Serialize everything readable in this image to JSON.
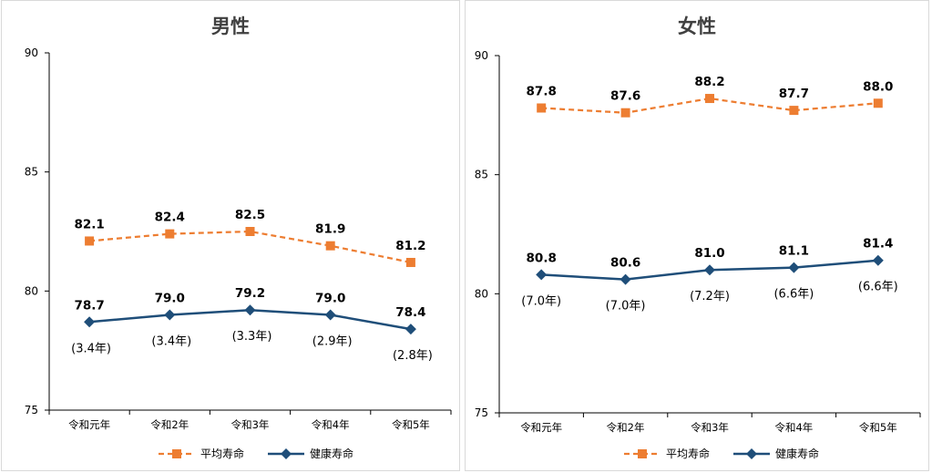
{
  "colors": {
    "life": "#ED7D31",
    "health": "#1F4E79",
    "axis": "#000000"
  },
  "chart_data": [
    {
      "type": "line",
      "title": "男性",
      "categories": [
        "令和元年",
        "令和2年",
        "令和3年",
        "令和4年",
        "令和5年"
      ],
      "ylim": [
        75,
        90
      ],
      "yticks": [
        "75",
        "80",
        "85",
        "90"
      ],
      "series": [
        {
          "name": "平均寿命",
          "values": [
            82.1,
            82.4,
            82.5,
            81.9,
            81.2
          ],
          "labels": [
            "82.1",
            "82.4",
            "82.5",
            "81.9",
            "81.2"
          ],
          "style": "dashed-square"
        },
        {
          "name": "健康寿命",
          "values": [
            78.7,
            79.0,
            79.2,
            79.0,
            78.4
          ],
          "labels": [
            "78.7",
            "79.0",
            "79.2",
            "79.0",
            "78.4"
          ],
          "style": "solid-diamond"
        }
      ],
      "gap_notes": [
        "(3.4年)",
        "(3.4年)",
        "(3.3年)",
        "(2.9年)",
        "(2.8年)"
      ],
      "legend": "bottom"
    },
    {
      "type": "line",
      "title": "女性",
      "categories": [
        "令和元年",
        "令和2年",
        "令和3年",
        "令和4年",
        "令和5年"
      ],
      "ylim": [
        75,
        90
      ],
      "yticks": [
        "75",
        "80",
        "85",
        "90"
      ],
      "series": [
        {
          "name": "平均寿命",
          "values": [
            87.8,
            87.6,
            88.2,
            87.7,
            88.0
          ],
          "labels": [
            "87.8",
            "87.6",
            "88.2",
            "87.7",
            "88.0"
          ],
          "style": "dashed-square"
        },
        {
          "name": "健康寿命",
          "values": [
            80.8,
            80.6,
            81.0,
            81.1,
            81.4
          ],
          "labels": [
            "80.8",
            "80.6",
            "81.0",
            "81.1",
            "81.4"
          ],
          "style": "solid-diamond"
        }
      ],
      "gap_notes": [
        "(7.0年)",
        "(7.0年)",
        "(7.2年)",
        "(6.6年)",
        "(6.6年)"
      ],
      "legend": "bottom"
    }
  ]
}
